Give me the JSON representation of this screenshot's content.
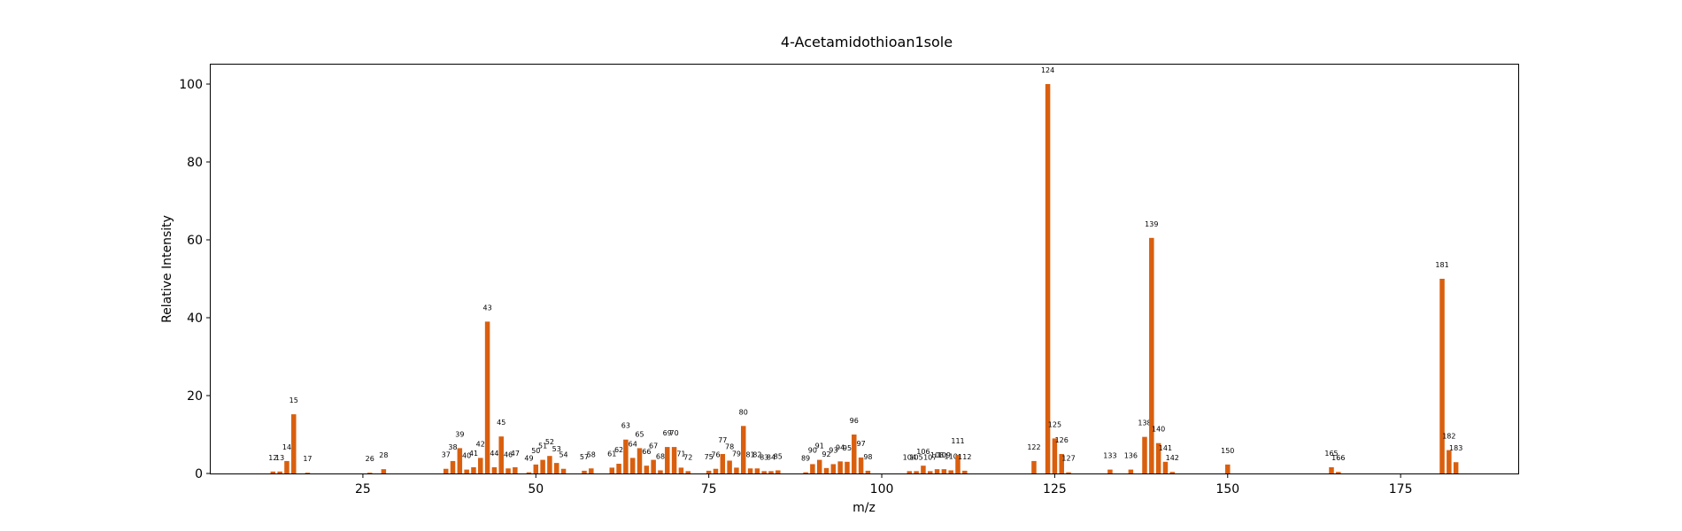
{
  "chart_data": {
    "type": "bar",
    "title": "4-Acetamidothioan1sole",
    "xlabel": "m/z",
    "ylabel": "Relative Intensity",
    "xlim": [
      3,
      192
    ],
    "ylim": [
      0,
      105
    ],
    "xticks": [
      25,
      50,
      75,
      100,
      125,
      150,
      175
    ],
    "yticks": [
      0,
      20,
      40,
      60,
      80,
      100
    ],
    "grid": false,
    "bar_color": "#d95f0e",
    "x": [
      12,
      13,
      14,
      15,
      17,
      26,
      28,
      37,
      38,
      39,
      40,
      41,
      42,
      43,
      44,
      45,
      46,
      47,
      49,
      50,
      51,
      52,
      53,
      54,
      57,
      58,
      61,
      62,
      63,
      64,
      65,
      66,
      67,
      68,
      69,
      70,
      71,
      72,
      75,
      76,
      77,
      78,
      79,
      80,
      81,
      82,
      83,
      84,
      85,
      89,
      90,
      91,
      92,
      93,
      94,
      95,
      96,
      97,
      98,
      104,
      105,
      106,
      107,
      108,
      109,
      110,
      111,
      112,
      122,
      124,
      125,
      126,
      127,
      133,
      136,
      138,
      139,
      140,
      141,
      142,
      150,
      165,
      166,
      181,
      182,
      183
    ],
    "labels": [
      "12",
      "13",
      "14",
      "15",
      "17",
      "26",
      "28",
      "37",
      "38",
      "39",
      "40",
      "41",
      "42",
      "43",
      "44",
      "45",
      "46",
      "47",
      "49",
      "50",
      "51",
      "52",
      "53",
      "54",
      "57",
      "58",
      "61",
      "62",
      "63",
      "64",
      "65",
      "66",
      "67",
      "68",
      "69",
      "70",
      "71",
      "72",
      "75",
      "76",
      "77",
      "78",
      "79",
      "80",
      "81",
      "82",
      "83",
      "84",
      "85",
      "89",
      "90",
      "91",
      "92",
      "93",
      "94",
      "95",
      "96",
      "97",
      "98",
      "104",
      "105",
      "106",
      "107",
      "108",
      "109",
      "110",
      "111",
      "112",
      "122",
      "124",
      "125",
      "126",
      "127",
      "133",
      "136",
      "138",
      "139",
      "140",
      "141",
      "142",
      "150",
      "165",
      "166",
      "181",
      "182",
      "183"
    ],
    "values": [
      0.5,
      0.5,
      3.2,
      15.2,
      0.2,
      0.2,
      1.1,
      1.2,
      3.2,
      6.5,
      1.0,
      1.6,
      4.0,
      39.0,
      1.6,
      9.5,
      1.3,
      1.6,
      0.3,
      2.3,
      3.5,
      4.5,
      2.7,
      1.2,
      0.7,
      1.3,
      1.5,
      2.5,
      8.7,
      4.0,
      6.5,
      2.0,
      3.5,
      0.8,
      6.8,
      6.8,
      1.5,
      0.6,
      0.7,
      1.2,
      5.0,
      3.3,
      1.5,
      12.2,
      1.3,
      1.3,
      0.6,
      0.6,
      0.8,
      0.3,
      2.4,
      3.5,
      1.4,
      2.4,
      3.1,
      3.0,
      10.0,
      4.1,
      0.7,
      0.6,
      0.6,
      2.0,
      0.6,
      1.1,
      1.1,
      0.8,
      4.8,
      0.7,
      3.2,
      100.0,
      9.0,
      5.0,
      0.3,
      1.0,
      1.0,
      9.4,
      60.5,
      7.8,
      3.0,
      0.4,
      2.3,
      1.6,
      0.4,
      50.0,
      6.0,
      2.9
    ]
  }
}
